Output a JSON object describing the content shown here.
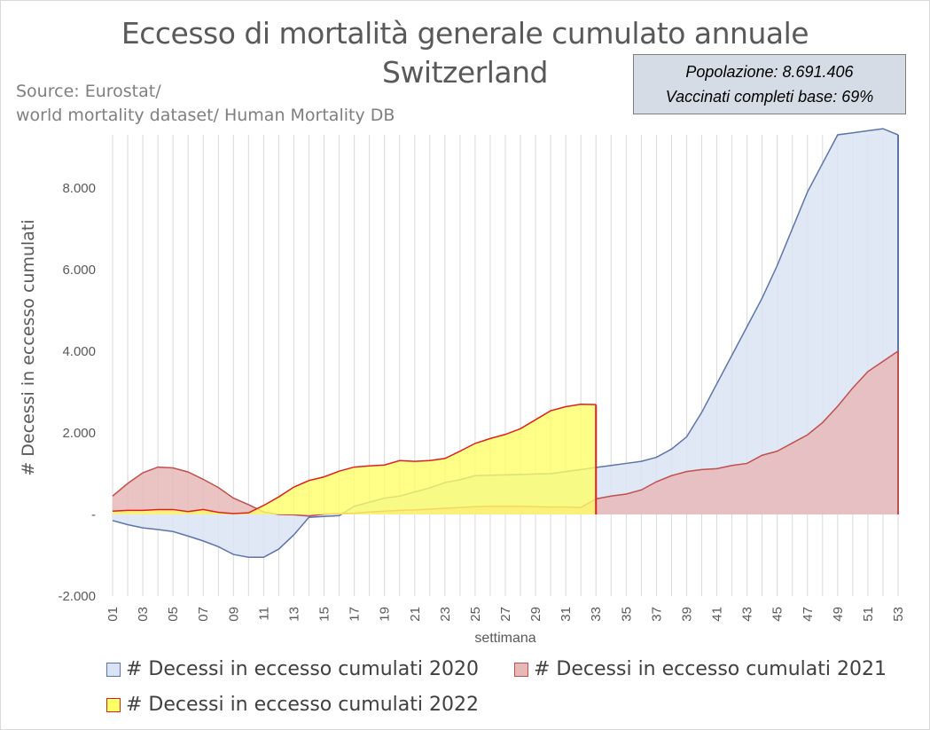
{
  "chart_data": {
    "type": "area",
    "title": "Eccesso di mortalità generale cumulato annuale",
    "subtitle": "Switzerland",
    "source_lines": [
      "Source: Eurostat/",
      "world mortality dataset/ Human Mortality DB"
    ],
    "info_box": [
      "Popolazione: 8.691.406",
      "Vaccinati completi base: 69%"
    ],
    "xlabel": "settimana",
    "ylabel": "# Decessi in eccesso cumulati",
    "ylim": [
      -2000,
      9300
    ],
    "yticks": [
      -2000,
      0,
      2000,
      4000,
      6000,
      8000
    ],
    "ytick_labels": [
      "-2.000",
      "-",
      "2.000",
      "4.000",
      "6.000",
      "8.000"
    ],
    "xticks": [
      "01",
      "03",
      "05",
      "07",
      "09",
      "11",
      "13",
      "15",
      "17",
      "19",
      "21",
      "23",
      "25",
      "27",
      "29",
      "31",
      "33",
      "35",
      "37",
      "39",
      "41",
      "43",
      "45",
      "47",
      "49",
      "51",
      "53"
    ],
    "legend_placement": "bottom",
    "series": [
      {
        "name": "# Decessi in eccesso cumulati 2020",
        "fill": "#dae3f3",
        "stroke": "#5b75aa",
        "values": [
          -150,
          -250,
          -330,
          -370,
          -420,
          -530,
          -650,
          -790,
          -980,
          -1050,
          -1050,
          -850,
          -500,
          -70,
          -50,
          -30,
          200,
          300,
          400,
          450,
          550,
          650,
          780,
          850,
          950,
          960,
          970,
          980,
          990,
          1000,
          1050,
          1100,
          1150,
          1200,
          1250,
          1300,
          1400,
          1600,
          1900,
          2500,
          3200,
          3900,
          4600,
          5300,
          6100,
          7000,
          7900,
          8600,
          9300,
          9350,
          9400,
          9450,
          9300
        ]
      },
      {
        "name": "# Decessi in eccesso cumulati 2021",
        "fill": "#e6b9b8",
        "stroke": "#c0504d",
        "values": [
          450,
          760,
          1020,
          1160,
          1140,
          1040,
          860,
          660,
          400,
          240,
          60,
          0,
          -10,
          -40,
          10,
          20,
          30,
          60,
          80,
          100,
          110,
          130,
          150,
          170,
          190,
          200,
          200,
          200,
          190,
          180,
          180,
          170,
          380,
          450,
          500,
          600,
          800,
          950,
          1050,
          1100,
          1120,
          1200,
          1250,
          1450,
          1550,
          1750,
          1950,
          2250,
          2650,
          3100,
          3500,
          3750,
          4000
        ]
      },
      {
        "name": "# Decessi in eccesso cumulati 2022",
        "fill": "#ffff66",
        "stroke": "#e02020",
        "values": [
          80,
          100,
          100,
          120,
          120,
          70,
          120,
          50,
          20,
          40,
          220,
          430,
          670,
          830,
          920,
          1060,
          1160,
          1190,
          1210,
          1320,
          1300,
          1320,
          1370,
          1550,
          1740,
          1860,
          1960,
          2100,
          2320,
          2540,
          2640,
          2700,
          2690
        ]
      }
    ]
  }
}
